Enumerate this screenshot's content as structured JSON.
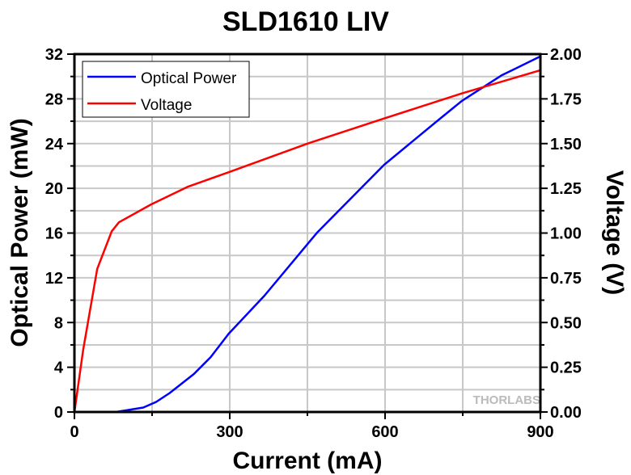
{
  "chart_data": {
    "type": "line",
    "title": "SLD1610 LIV",
    "xlabel": "Current (mA)",
    "ylabel": "Optical Power (mW)",
    "y2label": "Voltage (V)",
    "xlim": [
      0,
      900
    ],
    "ylim": [
      0,
      32
    ],
    "y2lim": [
      0,
      2.0
    ],
    "xticks": [
      "0",
      "300",
      "600",
      "900"
    ],
    "yticks": [
      "0",
      "4",
      "8",
      "12",
      "16",
      "20",
      "24",
      "28",
      "32"
    ],
    "y2ticks": [
      "0.00",
      "0.25",
      "0.50",
      "0.75",
      "1.00",
      "1.25",
      "1.50",
      "1.75",
      "2.00"
    ],
    "grid": true,
    "legend": "top-left",
    "watermark": "THORLABS",
    "series": [
      {
        "name": "Optical Power",
        "axis": "left",
        "color": "#0000ff",
        "x": [
          80,
          133,
          158,
          184,
          231,
          263,
          298,
          367,
          450,
          470,
          598,
          700,
          748,
          825,
          900
        ],
        "y": [
          0,
          0.4,
          0.9,
          1.7,
          3.4,
          4.9,
          7.0,
          10.4,
          15.0,
          16.1,
          22.1,
          26.0,
          27.8,
          30.1,
          31.8
        ]
      },
      {
        "name": "Voltage",
        "axis": "right",
        "color": "#ff0000",
        "x": [
          0,
          17,
          44,
          72,
          86,
          148,
          220,
          298,
          450,
          598,
          748,
          900
        ],
        "y": [
          0,
          0.35,
          0.8,
          1.01,
          1.06,
          1.16,
          1.26,
          1.34,
          1.5,
          1.64,
          1.78,
          1.91
        ]
      }
    ]
  }
}
